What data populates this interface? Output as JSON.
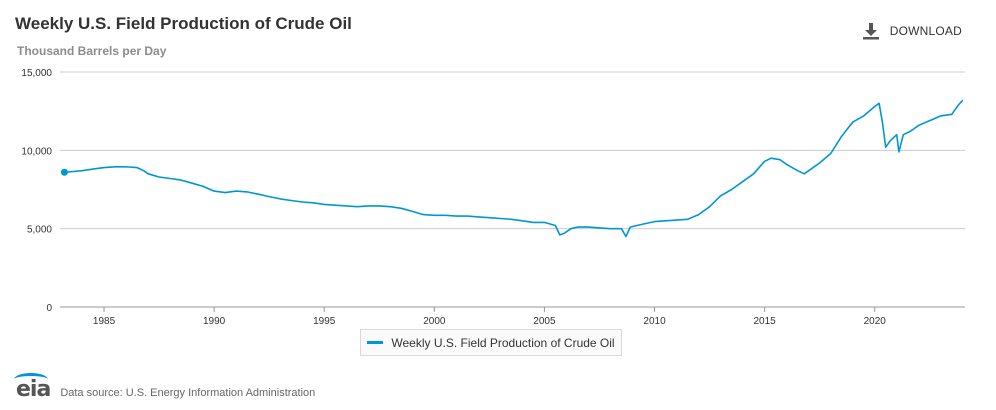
{
  "header": {
    "title": "Weekly U.S. Field Production of Crude Oil",
    "subtitle": "Thousand Barrels per Day",
    "download_label": "DOWNLOAD"
  },
  "footer": {
    "logo_text": "eia",
    "source_text": "Data source: U.S. Energy Information Administration"
  },
  "colors": {
    "series": "#0096d6",
    "grid": "#cccccc"
  },
  "chart_data": {
    "type": "line",
    "title": "Weekly U.S. Field Production of Crude Oil",
    "ylabel": "Thousand Barrels per Day",
    "xlim": [
      1983.0,
      2024.1
    ],
    "ylim": [
      0,
      15000
    ],
    "yticks": [
      0,
      5000,
      10000,
      15000
    ],
    "ytick_labels": [
      "0",
      "5,000",
      "10,000",
      "15,000"
    ],
    "xticks": [
      1985,
      1990,
      1995,
      2000,
      2005,
      2010,
      2015,
      2020
    ],
    "xtick_labels": [
      "1985",
      "1990",
      "1995",
      "2000",
      "2005",
      "2010",
      "2015",
      "2020"
    ],
    "legend": "bottom-center",
    "grid": true,
    "series": [
      {
        "name": "Weekly U.S. Field Production of Crude Oil",
        "x": [
          1983.2,
          1983.6,
          1984.0,
          1984.5,
          1985.0,
          1985.5,
          1986.0,
          1986.5,
          1986.8,
          1987.0,
          1987.5,
          1988.0,
          1988.5,
          1989.0,
          1989.5,
          1990.0,
          1990.5,
          1991.0,
          1991.5,
          1992.0,
          1992.5,
          1993.0,
          1993.5,
          1994.0,
          1994.5,
          1995.0,
          1995.5,
          1996.0,
          1996.5,
          1997.0,
          1997.5,
          1998.0,
          1998.5,
          1999.0,
          1999.5,
          2000.0,
          2000.5,
          2001.0,
          2001.5,
          2002.0,
          2002.5,
          2003.0,
          2003.5,
          2004.0,
          2004.5,
          2005.0,
          2005.5,
          2005.7,
          2005.9,
          2006.2,
          2006.5,
          2007.0,
          2007.5,
          2008.0,
          2008.5,
          2008.7,
          2008.9,
          2009.2,
          2009.5,
          2010.0,
          2010.5,
          2011.0,
          2011.5,
          2012.0,
          2012.5,
          2013.0,
          2013.5,
          2014.0,
          2014.5,
          2015.0,
          2015.3,
          2015.7,
          2016.0,
          2016.5,
          2016.8,
          2017.0,
          2017.5,
          2018.0,
          2018.5,
          2019.0,
          2019.5,
          2020.0,
          2020.2,
          2020.35,
          2020.5,
          2020.7,
          2021.0,
          2021.1,
          2021.3,
          2021.6,
          2022.0,
          2022.5,
          2023.0,
          2023.5,
          2023.8,
          2024.0
        ],
        "values": [
          8600,
          8650,
          8700,
          8800,
          8900,
          8950,
          8950,
          8900,
          8700,
          8500,
          8300,
          8200,
          8100,
          7900,
          7700,
          7400,
          7300,
          7400,
          7350,
          7200,
          7050,
          6900,
          6800,
          6700,
          6650,
          6550,
          6500,
          6450,
          6400,
          6450,
          6450,
          6400,
          6300,
          6100,
          5900,
          5850,
          5850,
          5800,
          5800,
          5750,
          5700,
          5650,
          5600,
          5500,
          5400,
          5400,
          5200,
          4600,
          4700,
          5000,
          5100,
          5100,
          5050,
          5000,
          5000,
          4500,
          5100,
          5200,
          5300,
          5450,
          5500,
          5550,
          5600,
          5900,
          6400,
          7100,
          7500,
          8000,
          8500,
          9300,
          9500,
          9400,
          9100,
          8700,
          8500,
          8700,
          9200,
          9800,
          10900,
          11800,
          12200,
          12800,
          13000,
          11800,
          10200,
          10600,
          11000,
          9900,
          11000,
          11200,
          11600,
          11900,
          12200,
          12300,
          12900,
          13200
        ]
      }
    ]
  }
}
